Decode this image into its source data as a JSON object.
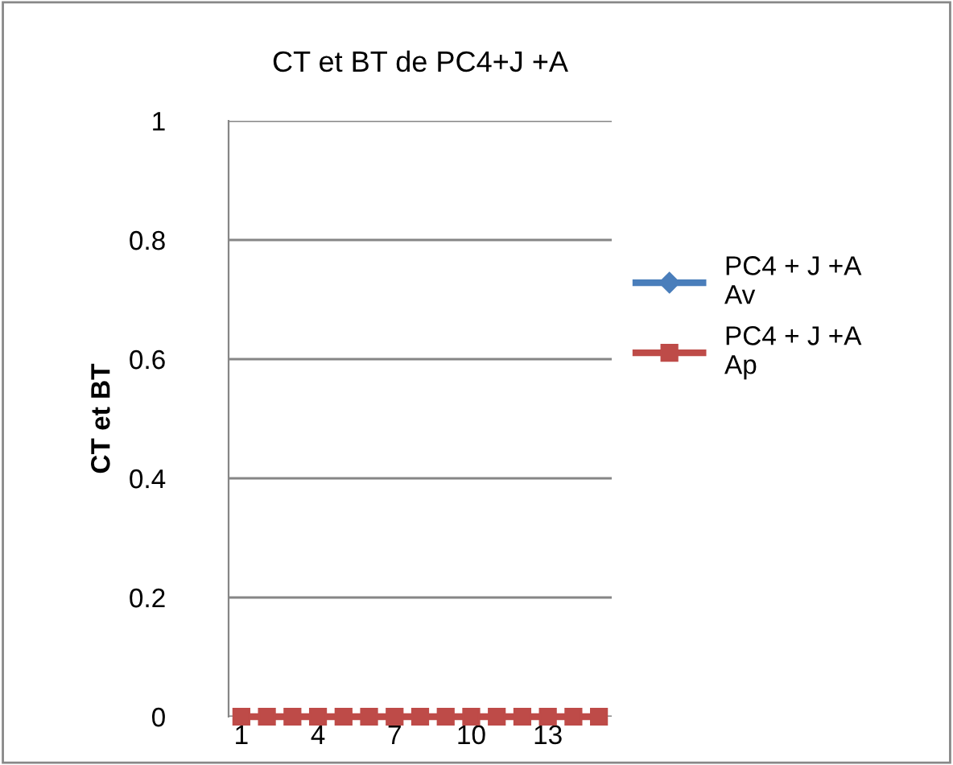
{
  "chart_data": {
    "type": "line",
    "title": "CT et BT de PC4+J +A",
    "ylabel": "CT et BT",
    "categories": [
      "1",
      null,
      null,
      "4",
      null,
      null,
      "7",
      null,
      null,
      "10",
      null,
      null,
      "13",
      null,
      null
    ],
    "series": [
      {
        "name": "PC4 + J +A Av",
        "color": "#4a7ebb",
        "marker": "diamond",
        "values": [
          null,
          null,
          null,
          null,
          null,
          null,
          null,
          null,
          null,
          null,
          null,
          null,
          null,
          null,
          null
        ]
      },
      {
        "name": "PC4 + J +A Ap",
        "color": "#be4b48",
        "marker": "square",
        "values": [
          0,
          0,
          0,
          0,
          0,
          0,
          0,
          0,
          0,
          0,
          0,
          0,
          0,
          0,
          0
        ]
      }
    ],
    "ylim": [
      0,
      1
    ],
    "yticks": [
      0,
      0.2,
      0.4,
      0.6,
      0.8,
      1
    ],
    "grid": "y",
    "legend": "right",
    "line_style": "solid"
  }
}
